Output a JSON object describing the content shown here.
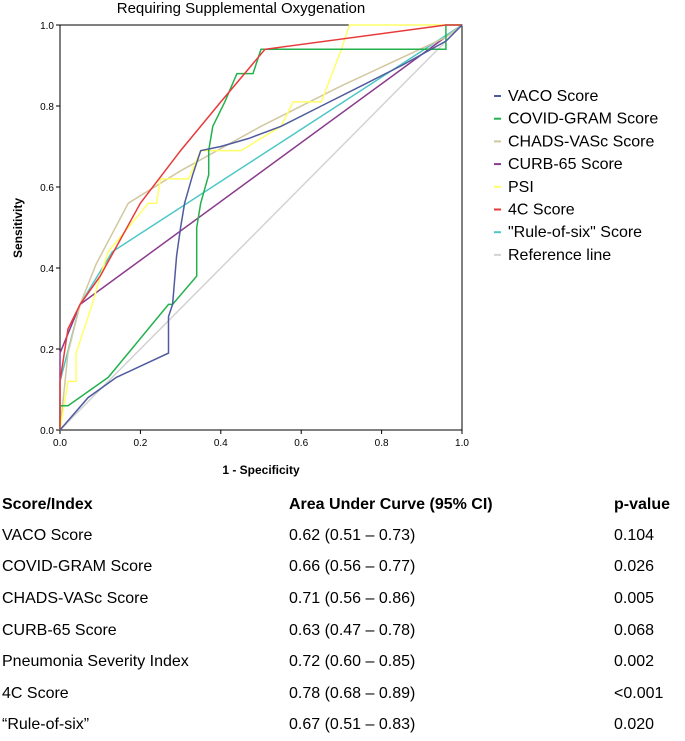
{
  "chart_data": {
    "type": "line",
    "title": "Requiring Supplemental Oxygenation",
    "xlabel": "1 - Specificity",
    "ylabel": "Sensitivity",
    "xlim": [
      0,
      1
    ],
    "ylim": [
      0,
      1
    ],
    "x_ticks": [
      "0.0",
      "0.2",
      "0.4",
      "0.6",
      "0.8",
      "1.0"
    ],
    "y_ticks": [
      "0.0",
      "0.2",
      "0.4",
      "0.6",
      "0.8",
      "1.0"
    ],
    "grid": false,
    "legend_position": "right",
    "series": [
      {
        "name": "VACO Score",
        "color": "#4f5b9e",
        "points": [
          [
            0,
            0
          ],
          [
            0.07,
            0.08
          ],
          [
            0.14,
            0.13
          ],
          [
            0.27,
            0.19
          ],
          [
            0.27,
            0.28
          ],
          [
            0.28,
            0.31
          ],
          [
            0.29,
            0.43
          ],
          [
            0.3,
            0.5
          ],
          [
            0.31,
            0.56
          ],
          [
            0.33,
            0.63
          ],
          [
            0.35,
            0.69
          ],
          [
            0.4,
            0.7
          ],
          [
            0.47,
            0.72
          ],
          [
            0.55,
            0.75
          ],
          [
            0.65,
            0.8
          ],
          [
            0.75,
            0.85
          ],
          [
            0.85,
            0.9
          ],
          [
            0.96,
            0.96
          ],
          [
            1,
            1
          ]
        ]
      },
      {
        "name": "COVID-GRAM Score",
        "color": "#22b14c",
        "points": [
          [
            0,
            0
          ],
          [
            0,
            0.06
          ],
          [
            0.02,
            0.06
          ],
          [
            0.12,
            0.13
          ],
          [
            0.27,
            0.31
          ],
          [
            0.28,
            0.31
          ],
          [
            0.34,
            0.38
          ],
          [
            0.34,
            0.5
          ],
          [
            0.35,
            0.56
          ],
          [
            0.37,
            0.63
          ],
          [
            0.37,
            0.69
          ],
          [
            0.38,
            0.75
          ],
          [
            0.41,
            0.81
          ],
          [
            0.44,
            0.88
          ],
          [
            0.48,
            0.88
          ],
          [
            0.5,
            0.94
          ],
          [
            0.96,
            0.94
          ],
          [
            0.96,
            1
          ],
          [
            1,
            1
          ]
        ]
      },
      {
        "name": "CHADS-VASc Score",
        "color": "#d2c8a0",
        "points": [
          [
            0,
            0
          ],
          [
            0.02,
            0.19
          ],
          [
            0.05,
            0.31
          ],
          [
            0.09,
            0.41
          ],
          [
            0.17,
            0.56
          ],
          [
            0.3,
            0.64
          ],
          [
            0.5,
            0.75
          ],
          [
            0.7,
            0.85
          ],
          [
            0.96,
            0.97
          ],
          [
            1,
            1
          ]
        ]
      },
      {
        "name": "CURB-65 Score",
        "color": "#8b3b8b",
        "points": [
          [
            0,
            0
          ],
          [
            0,
            0.19
          ],
          [
            0.05,
            0.31
          ],
          [
            1,
            1
          ]
        ]
      },
      {
        "name": "PSI",
        "color": "#ffff66",
        "points": [
          [
            0,
            0
          ],
          [
            0.02,
            0.12
          ],
          [
            0.04,
            0.12
          ],
          [
            0.04,
            0.19
          ],
          [
            0.06,
            0.25
          ],
          [
            0.08,
            0.31
          ],
          [
            0.1,
            0.38
          ],
          [
            0.12,
            0.44
          ],
          [
            0.17,
            0.5
          ],
          [
            0.22,
            0.56
          ],
          [
            0.24,
            0.56
          ],
          [
            0.25,
            0.62
          ],
          [
            0.32,
            0.62
          ],
          [
            0.35,
            0.69
          ],
          [
            0.45,
            0.69
          ],
          [
            0.55,
            0.75
          ],
          [
            0.58,
            0.81
          ],
          [
            0.65,
            0.81
          ],
          [
            0.7,
            0.94
          ],
          [
            0.72,
            1
          ],
          [
            1,
            1
          ]
        ]
      },
      {
        "name": "4C Score",
        "color": "#e83a3a",
        "points": [
          [
            0,
            0
          ],
          [
            0,
            0.12
          ],
          [
            0.02,
            0.25
          ],
          [
            0.05,
            0.31
          ],
          [
            0.1,
            0.38
          ],
          [
            0.2,
            0.56
          ],
          [
            0.3,
            0.69
          ],
          [
            0.4,
            0.81
          ],
          [
            0.51,
            0.94
          ],
          [
            0.96,
            1
          ],
          [
            1,
            1
          ]
        ]
      },
      {
        "name": "\"Rule-of-six\" Score",
        "color": "#4cc6c6",
        "points": [
          [
            0,
            0
          ],
          [
            0,
            0.12
          ],
          [
            0.05,
            0.31
          ],
          [
            0.13,
            0.44
          ],
          [
            1,
            1
          ]
        ]
      },
      {
        "name": "Reference line",
        "color": "#d3d3d3",
        "points": [
          [
            0,
            0
          ],
          [
            1,
            1
          ]
        ]
      }
    ]
  },
  "table": {
    "headers": [
      "Score/Index",
      "Area Under Curve (95% CI)",
      "p-value"
    ],
    "rows": [
      [
        "VACO Score",
        "0.62 (0.51 – 0.73)",
        "0.104"
      ],
      [
        "COVID-GRAM Score",
        "0.66 (0.56 – 0.77)",
        "0.026"
      ],
      [
        "CHADS-VASc Score",
        "0.71 (0.56 – 0.86)",
        "0.005"
      ],
      [
        "CURB-65 Score",
        "0.63 (0.47 – 0.78)",
        "0.068"
      ],
      [
        "Pneumonia Severity Index",
        "0.72 (0.60 – 0.85)",
        "0.002"
      ],
      [
        "4C Score",
        "0.78 (0.68 – 0.89)",
        "<0.001"
      ],
      [
        "“Rule-of-six”",
        "0.67 (0.51 – 0.83)",
        "0.020"
      ]
    ]
  }
}
